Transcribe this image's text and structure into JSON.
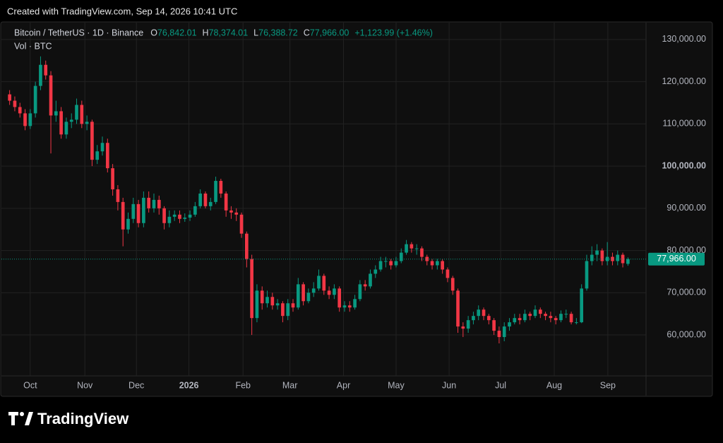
{
  "header": {
    "caption": "Created with TradingView.com, Sep 14, 2026 10:41 UTC"
  },
  "legend": {
    "symbol": "Bitcoin / TetherUS · 1D · Binance",
    "ohlc": [
      {
        "key": "O",
        "value": "76,842.01"
      },
      {
        "key": "H",
        "value": "78,374.01"
      },
      {
        "key": "L",
        "value": "76,388.72"
      },
      {
        "key": "C",
        "value": "77,966.00"
      }
    ],
    "change": "+1,123.99 (+1.46%)",
    "volume": "Vol · BTC"
  },
  "footer": {
    "brand": "TradingView"
  },
  "chart_data": {
    "type": "candlestick",
    "up_color": "#089981",
    "down_color": "#f23645",
    "grid": true,
    "open": [
      117000,
      115500,
      114000,
      112500,
      109500,
      112500,
      119000,
      124000,
      121500,
      112000,
      113000,
      107500,
      110500,
      111000,
      114500,
      110000,
      110500,
      101500,
      103500,
      105500,
      99500,
      94500,
      91500,
      85000,
      87500,
      91000,
      86500,
      92500,
      90000,
      92000,
      90000,
      86500,
      88000,
      88500,
      87500,
      87800,
      88500,
      90500,
      93500,
      90500,
      91500,
      96500,
      93500,
      89500,
      89000,
      88500,
      84000,
      78000,
      64000,
      70500,
      67500,
      69000,
      67000,
      67500,
      64500,
      67500,
      66500,
      72000,
      68000,
      70000,
      71000,
      74000,
      70500,
      69500,
      71000,
      66500,
      67000,
      66500,
      68500,
      72000,
      71500,
      74500,
      75500,
      77500,
      77500,
      76500,
      77500,
      79500,
      81500,
      80500,
      80500,
      78500,
      77500,
      76500,
      77500,
      75500,
      73500,
      70500,
      62000,
      61500,
      63500,
      64500,
      66000,
      64500,
      63500,
      61000,
      59500,
      62000,
      63000,
      64000,
      63500,
      65000,
      64500,
      66000,
      65000,
      64500,
      64000,
      63500,
      65000,
      65000,
      63000,
      63000,
      71000,
      77500,
      79000,
      80000,
      77500,
      78500,
      77500,
      79000,
      76842.01
    ],
    "high": [
      118000,
      116500,
      115000,
      113500,
      113500,
      120000,
      126000,
      125000,
      122500,
      115500,
      114000,
      111500,
      112500,
      116000,
      115500,
      112000,
      111000,
      105000,
      107000,
      106500,
      100500,
      95500,
      92500,
      89000,
      92500,
      92000,
      94000,
      94000,
      93500,
      93000,
      90500,
      89500,
      89500,
      89500,
      88800,
      89500,
      91500,
      94500,
      94000,
      92500,
      97500,
      97000,
      94000,
      90500,
      90000,
      89000,
      84500,
      79000,
      72000,
      71500,
      70500,
      70000,
      68500,
      68000,
      68500,
      68500,
      73500,
      72500,
      71000,
      72500,
      75500,
      74500,
      71500,
      72000,
      71500,
      68000,
      68000,
      69500,
      73000,
      73000,
      75500,
      76500,
      78500,
      78500,
      78000,
      78500,
      80500,
      82500,
      82000,
      81500,
      81000,
      79000,
      78000,
      78000,
      78000,
      76000,
      74000,
      71000,
      63000,
      64500,
      65500,
      67000,
      66500,
      65000,
      64000,
      62000,
      63000,
      64000,
      65000,
      65000,
      66000,
      65500,
      67000,
      66500,
      65500,
      65500,
      64500,
      65800,
      66000,
      65500,
      64000,
      72000,
      79000,
      81000,
      81500,
      80500,
      82000,
      79500,
      80000,
      79500,
      78374.01
    ],
    "low": [
      114500,
      113000,
      111500,
      108500,
      108800,
      111500,
      118000,
      120500,
      103000,
      110500,
      106500,
      106500,
      109000,
      110000,
      109000,
      108500,
      100000,
      100500,
      102500,
      98500,
      93000,
      89500,
      81000,
      84000,
      86500,
      85500,
      85500,
      89000,
      89000,
      88500,
      85000,
      85500,
      87000,
      86500,
      86800,
      87000,
      88000,
      90000,
      90000,
      89500,
      91000,
      92500,
      88000,
      87500,
      87000,
      83000,
      76000,
      60000,
      63000,
      66000,
      66500,
      66000,
      66000,
      63000,
      63500,
      65500,
      66000,
      67000,
      67500,
      69000,
      70500,
      69500,
      68500,
      68500,
      65500,
      65500,
      65500,
      66000,
      68000,
      70500,
      71000,
      73500,
      75000,
      76000,
      75500,
      76000,
      77000,
      79000,
      79500,
      79000,
      77500,
      76500,
      75500,
      75500,
      74500,
      72500,
      69500,
      60500,
      59500,
      60500,
      62500,
      63500,
      63500,
      62500,
      60000,
      58000,
      58500,
      61000,
      62500,
      62500,
      63000,
      63500,
      64000,
      64000,
      63500,
      63000,
      62500,
      63000,
      64000,
      62500,
      62500,
      62800,
      70500,
      76500,
      77500,
      76500,
      76500,
      76500,
      76500,
      76000,
      76388.72
    ],
    "close": [
      115500,
      114000,
      112500,
      109500,
      112500,
      119000,
      124000,
      121500,
      112000,
      113000,
      107500,
      110500,
      111000,
      114500,
      110000,
      110500,
      101500,
      103500,
      105500,
      99500,
      94500,
      91500,
      85000,
      87500,
      91000,
      86500,
      92500,
      90000,
      92000,
      90000,
      86500,
      88000,
      88500,
      87500,
      87800,
      88500,
      90500,
      93500,
      90500,
      91500,
      96500,
      93500,
      89500,
      89000,
      88500,
      84000,
      78000,
      64000,
      70500,
      67500,
      69000,
      67000,
      67500,
      64500,
      67500,
      66500,
      72000,
      68000,
      70000,
      71000,
      74000,
      70500,
      69500,
      71000,
      66500,
      67000,
      66500,
      68500,
      72000,
      71500,
      74500,
      75500,
      77500,
      77500,
      76500,
      77500,
      79500,
      81500,
      80500,
      80500,
      78500,
      77500,
      76500,
      77500,
      75500,
      73500,
      70500,
      62000,
      61500,
      63500,
      64500,
      66000,
      64500,
      63500,
      61000,
      59500,
      62000,
      63000,
      64000,
      63500,
      65000,
      64500,
      66000,
      65000,
      64500,
      64000,
      63500,
      65000,
      65000,
      63000,
      63000,
      71000,
      77500,
      79000,
      80000,
      77500,
      78500,
      77500,
      79000,
      77000,
      77966
    ],
    "xlim": [
      -0.5,
      120.5
    ],
    "xticks": [
      {
        "value": 4.0,
        "label": "Oct"
      },
      {
        "value": 14.6,
        "label": "Nov"
      },
      {
        "value": 24.6,
        "label": "Dec"
      },
      {
        "value": 34.8,
        "label": "2026"
      },
      {
        "value": 45.3,
        "label": "Feb"
      },
      {
        "value": 54.4,
        "label": "Mar"
      },
      {
        "value": 64.8,
        "label": "Apr"
      },
      {
        "value": 75.0,
        "label": "May"
      },
      {
        "value": 85.3,
        "label": "Jun"
      },
      {
        "value": 95.3,
        "label": "Jul"
      },
      {
        "value": 105.7,
        "label": "Aug"
      },
      {
        "value": 116.1,
        "label": "Sep"
      }
    ],
    "ylim": [
      50300,
      134000
    ],
    "yticks": [
      {
        "value": 60000,
        "label": "60,000.00"
      },
      {
        "value": 70000,
        "label": "70,000.00"
      },
      {
        "value": 80000,
        "label": "80,000.00"
      },
      {
        "value": 90000,
        "label": "90,000.00"
      },
      {
        "value": 100000,
        "label": "100,000.00"
      },
      {
        "value": 110000,
        "label": "110,000.00"
      },
      {
        "value": 120000,
        "label": "120,000.00"
      },
      {
        "value": 130000,
        "label": "130,000.00"
      }
    ],
    "last_price": {
      "value": 77966,
      "label": "77,966.00"
    }
  }
}
